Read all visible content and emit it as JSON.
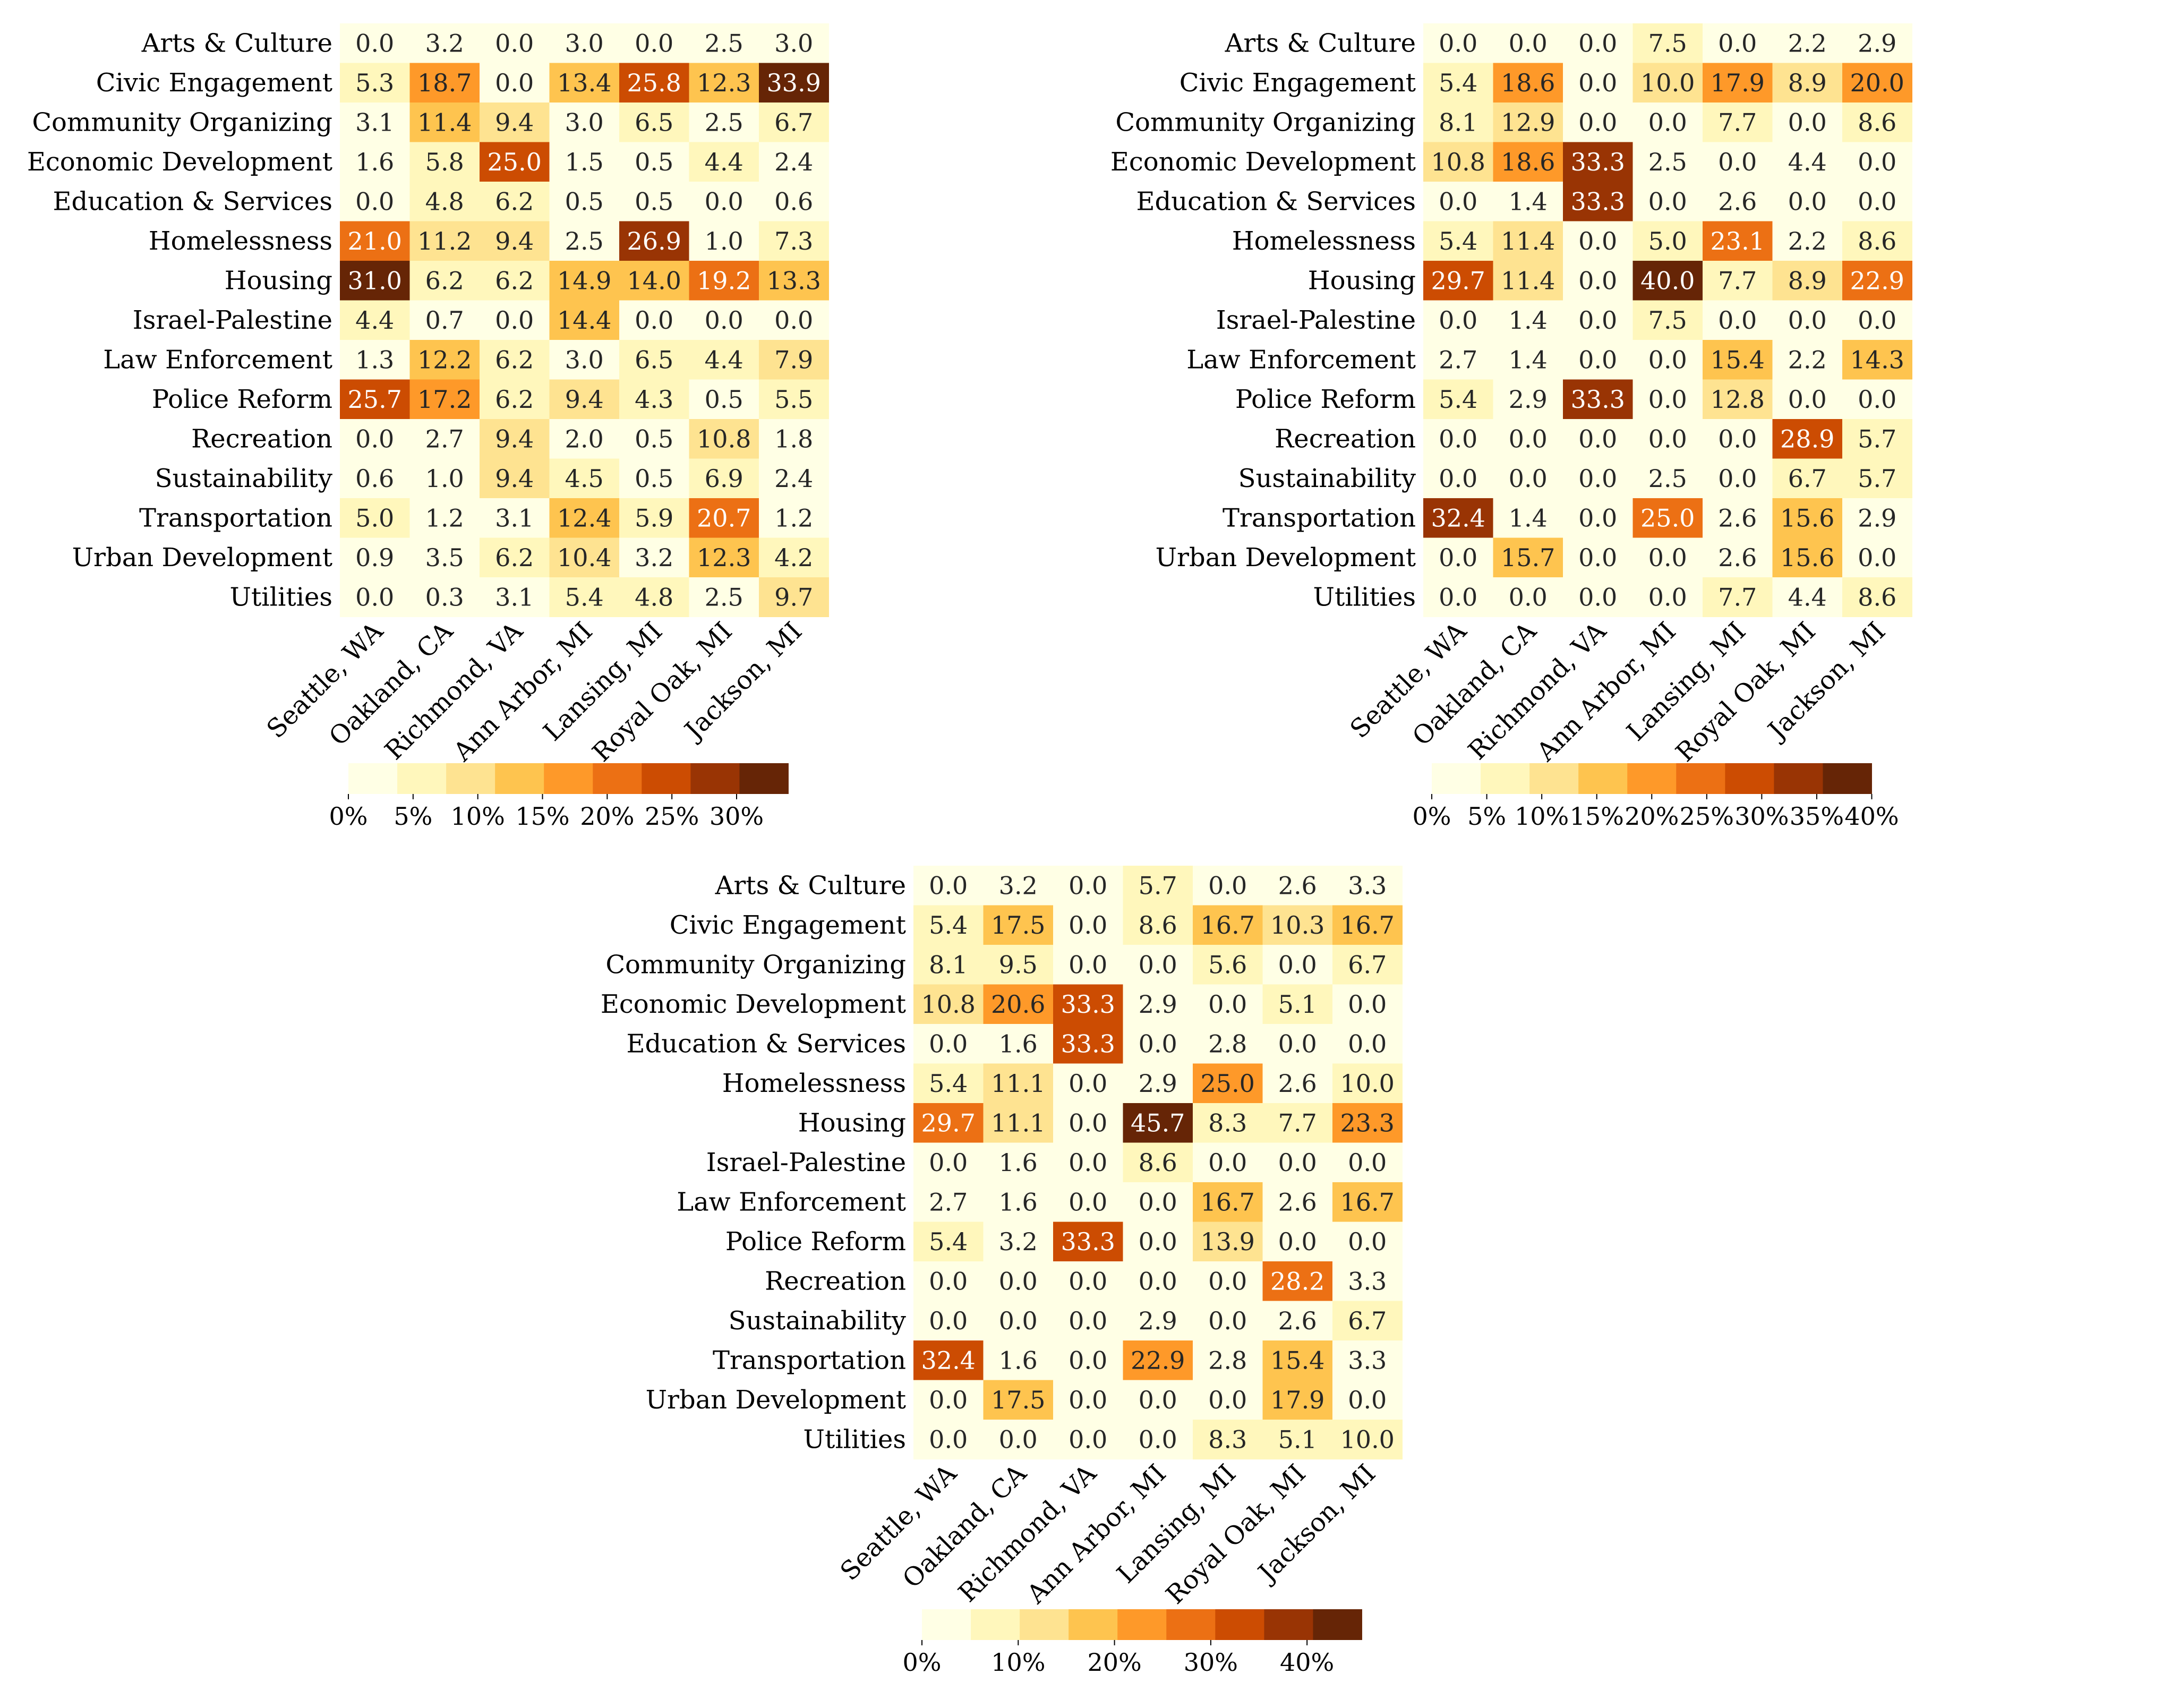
{
  "chart_data": [
    {
      "type": "heatmap",
      "y_categories": [
        "Arts & Culture",
        "Civic Engagement",
        "Community Organizing",
        "Economic Development",
        "Education & Services",
        "Homelessness",
        "Housing",
        "Israel-Palestine",
        "Law Enforcement",
        "Police Reform",
        "Recreation",
        "Sustainability",
        "Transportation",
        "Urban Development",
        "Utilities"
      ],
      "x_categories": [
        "Seattle, WA",
        "Oakland, CA",
        "Richmond, VA",
        "Ann Arbor, MI",
        "Lansing, MI",
        "Royal Oak, MI",
        "Jackson, MI"
      ],
      "values": [
        [
          0.0,
          3.2,
          0.0,
          3.0,
          0.0,
          2.5,
          3.0
        ],
        [
          5.3,
          18.7,
          0.0,
          13.4,
          25.8,
          12.3,
          33.9
        ],
        [
          3.1,
          11.4,
          9.4,
          3.0,
          6.5,
          2.5,
          6.7
        ],
        [
          1.6,
          5.8,
          25.0,
          1.5,
          0.5,
          4.4,
          2.4
        ],
        [
          0.0,
          4.8,
          6.2,
          0.5,
          0.5,
          0.0,
          0.6
        ],
        [
          21.0,
          11.2,
          9.4,
          2.5,
          26.9,
          1.0,
          7.3
        ],
        [
          31.0,
          6.2,
          6.2,
          14.9,
          14.0,
          19.2,
          13.3
        ],
        [
          4.4,
          0.7,
          0.0,
          14.4,
          0.0,
          0.0,
          0.0
        ],
        [
          1.3,
          12.2,
          6.2,
          3.0,
          6.5,
          4.4,
          7.9
        ],
        [
          25.7,
          17.2,
          6.2,
          9.4,
          4.3,
          0.5,
          5.5
        ],
        [
          0.0,
          2.7,
          9.4,
          2.0,
          0.5,
          10.8,
          1.8
        ],
        [
          0.6,
          1.0,
          9.4,
          4.5,
          0.5,
          6.9,
          2.4
        ],
        [
          5.0,
          1.2,
          3.1,
          12.4,
          5.9,
          20.7,
          1.2
        ],
        [
          0.9,
          3.5,
          6.2,
          10.4,
          3.2,
          12.3,
          4.2
        ],
        [
          0.0,
          0.3,
          3.1,
          5.4,
          4.8,
          2.5,
          9.7
        ]
      ],
      "colorbar": {
        "min": 0,
        "max": 34,
        "bins": 9,
        "ticks": [
          0,
          5,
          10,
          15,
          20,
          25,
          30
        ],
        "tick_labels": [
          "0%",
          "5%",
          "10%",
          "15%",
          "20%",
          "25%",
          "30%"
        ]
      }
    },
    {
      "type": "heatmap",
      "y_categories": [
        "Arts & Culture",
        "Civic Engagement",
        "Community Organizing",
        "Economic Development",
        "Education & Services",
        "Homelessness",
        "Housing",
        "Israel-Palestine",
        "Law Enforcement",
        "Police Reform",
        "Recreation",
        "Sustainability",
        "Transportation",
        "Urban Development",
        "Utilities"
      ],
      "x_categories": [
        "Seattle, WA",
        "Oakland, CA",
        "Richmond, VA",
        "Ann Arbor, MI",
        "Lansing, MI",
        "Royal Oak, MI",
        "Jackson, MI"
      ],
      "values": [
        [
          0.0,
          0.0,
          0.0,
          7.5,
          0.0,
          2.2,
          2.9
        ],
        [
          5.4,
          18.6,
          0.0,
          10.0,
          17.9,
          8.9,
          20.0
        ],
        [
          8.1,
          12.9,
          0.0,
          0.0,
          7.7,
          0.0,
          8.6
        ],
        [
          10.8,
          18.6,
          33.3,
          2.5,
          0.0,
          4.4,
          0.0
        ],
        [
          0.0,
          1.4,
          33.3,
          0.0,
          2.6,
          0.0,
          0.0
        ],
        [
          5.4,
          11.4,
          0.0,
          5.0,
          23.1,
          2.2,
          8.6
        ],
        [
          29.7,
          11.4,
          0.0,
          40.0,
          7.7,
          8.9,
          22.9
        ],
        [
          0.0,
          1.4,
          0.0,
          7.5,
          0.0,
          0.0,
          0.0
        ],
        [
          2.7,
          1.4,
          0.0,
          0.0,
          15.4,
          2.2,
          14.3
        ],
        [
          5.4,
          2.9,
          33.3,
          0.0,
          12.8,
          0.0,
          0.0
        ],
        [
          0.0,
          0.0,
          0.0,
          0.0,
          0.0,
          28.9,
          5.7
        ],
        [
          0.0,
          0.0,
          0.0,
          2.5,
          0.0,
          6.7,
          5.7
        ],
        [
          32.4,
          1.4,
          0.0,
          25.0,
          2.6,
          15.6,
          2.9
        ],
        [
          0.0,
          15.7,
          0.0,
          0.0,
          2.6,
          15.6,
          0.0
        ],
        [
          0.0,
          0.0,
          0.0,
          0.0,
          7.7,
          4.4,
          8.6
        ]
      ],
      "colorbar": {
        "min": 0,
        "max": 40,
        "bins": 9,
        "ticks": [
          0,
          5,
          10,
          15,
          20,
          25,
          30,
          35,
          40
        ],
        "tick_labels": [
          "0%",
          "5%",
          "10%",
          "15%",
          "20%",
          "25%",
          "30%",
          "35%",
          "40%"
        ]
      }
    },
    {
      "type": "heatmap",
      "y_categories": [
        "Arts & Culture",
        "Civic Engagement",
        "Community Organizing",
        "Economic Development",
        "Education & Services",
        "Homelessness",
        "Housing",
        "Israel-Palestine",
        "Law Enforcement",
        "Police Reform",
        "Recreation",
        "Sustainability",
        "Transportation",
        "Urban Development",
        "Utilities"
      ],
      "x_categories": [
        "Seattle, WA",
        "Oakland, CA",
        "Richmond, VA",
        "Ann Arbor, MI",
        "Lansing, MI",
        "Royal Oak, MI",
        "Jackson, MI"
      ],
      "values": [
        [
          0.0,
          3.2,
          0.0,
          5.7,
          0.0,
          2.6,
          3.3
        ],
        [
          5.4,
          17.5,
          0.0,
          8.6,
          16.7,
          10.3,
          16.7
        ],
        [
          8.1,
          9.5,
          0.0,
          0.0,
          5.6,
          0.0,
          6.7
        ],
        [
          10.8,
          20.6,
          33.3,
          2.9,
          0.0,
          5.1,
          0.0
        ],
        [
          0.0,
          1.6,
          33.3,
          0.0,
          2.8,
          0.0,
          0.0
        ],
        [
          5.4,
          11.1,
          0.0,
          2.9,
          25.0,
          2.6,
          10.0
        ],
        [
          29.7,
          11.1,
          0.0,
          45.7,
          8.3,
          7.7,
          23.3
        ],
        [
          0.0,
          1.6,
          0.0,
          8.6,
          0.0,
          0.0,
          0.0
        ],
        [
          2.7,
          1.6,
          0.0,
          0.0,
          16.7,
          2.6,
          16.7
        ],
        [
          5.4,
          3.2,
          33.3,
          0.0,
          13.9,
          0.0,
          0.0
        ],
        [
          0.0,
          0.0,
          0.0,
          0.0,
          0.0,
          28.2,
          3.3
        ],
        [
          0.0,
          0.0,
          0.0,
          2.9,
          0.0,
          2.6,
          6.7
        ],
        [
          32.4,
          1.6,
          0.0,
          22.9,
          2.8,
          15.4,
          3.3
        ],
        [
          0.0,
          17.5,
          0.0,
          0.0,
          0.0,
          17.9,
          0.0
        ],
        [
          0.0,
          0.0,
          0.0,
          0.0,
          8.3,
          5.1,
          10.0
        ]
      ],
      "colorbar": {
        "min": 0,
        "max": 45.7,
        "bins": 9,
        "ticks": [
          0,
          10,
          20,
          30,
          40
        ],
        "tick_labels": [
          "0%",
          "10%",
          "20%",
          "30%",
          "40%"
        ]
      }
    }
  ],
  "palette": [
    "#ffffe5",
    "#fff7bc",
    "#fee391",
    "#fec44f",
    "#fe9929",
    "#ec7014",
    "#cc4c02",
    "#993404",
    "#662506"
  ]
}
